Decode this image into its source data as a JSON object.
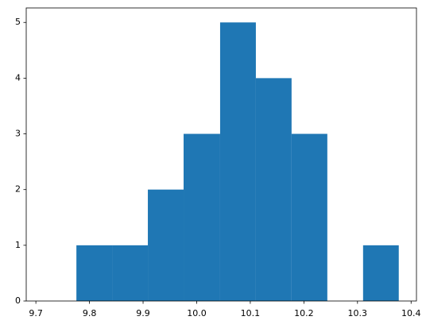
{
  "chart_data": {
    "type": "histogram",
    "bins": [
      9.7756,
      9.8422,
      9.9089,
      9.9756,
      10.0437,
      10.1104,
      10.177,
      10.2437,
      10.3104,
      10.377
    ],
    "values": [
      1,
      1,
      2,
      3,
      5,
      4,
      3,
      0,
      1
    ],
    "color": "#1f77b4",
    "xlim": [
      9.682,
      10.41
    ],
    "xticks": [
      9.7,
      9.8,
      9.9,
      10.0,
      10.1,
      10.2,
      10.3,
      10.4
    ],
    "ylim": [
      0,
      5.26
    ],
    "yticks": [
      0,
      1,
      2,
      3,
      4,
      5
    ]
  }
}
